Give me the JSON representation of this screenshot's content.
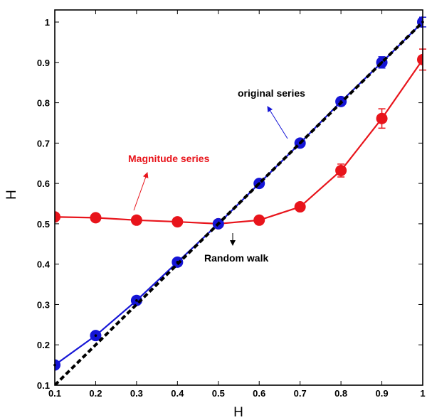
{
  "chart_data": {
    "type": "line",
    "xlabel": "H",
    "ylabel": "H",
    "xlim": [
      0.1,
      1
    ],
    "ylim": [
      0.1,
      1.03
    ],
    "x_ticks": [
      "0.1",
      "0.2",
      "0.3",
      "0.4",
      "0.5",
      "0.6",
      "0.7",
      "0.8",
      "0.9",
      "1"
    ],
    "y_ticks": [
      "0.1",
      "0.2",
      "0.3",
      "0.4",
      "0.5",
      "0.6",
      "0.7",
      "0.8",
      "0.9",
      "1"
    ],
    "grid": false,
    "x": [
      0.1,
      0.2,
      0.3,
      0.4,
      0.5,
      0.6,
      0.7,
      0.8,
      0.9,
      1.0
    ],
    "series": [
      {
        "name": "original series",
        "color": "#1515d6",
        "values": [
          0.15,
          0.223,
          0.31,
          0.405,
          0.5,
          0.6,
          0.7,
          0.803,
          0.9,
          1.0
        ],
        "errors": [
          0.0,
          0.0,
          0.0,
          0.0,
          0.0,
          0.0,
          0.0,
          0.01,
          0.014,
          0.012
        ]
      },
      {
        "name": "Magnitude series",
        "color": "#e8141b",
        "values": [
          0.517,
          0.515,
          0.509,
          0.505,
          0.5,
          0.509,
          0.542,
          0.632,
          0.761,
          0.907
        ],
        "errors": [
          0.0,
          0.0,
          0.0,
          0.0,
          0.0,
          0.0,
          0.0,
          0.016,
          0.024,
          0.026
        ]
      },
      {
        "name": "Random walk",
        "color": "#000000",
        "style": "dashed",
        "x": [
          0.1,
          1.0
        ],
        "values": [
          0.1,
          1.0
        ]
      }
    ],
    "annotations": [
      {
        "text": "original series",
        "color": "#000000",
        "arrow_color": "#1515d6"
      },
      {
        "text": "Magnitude series",
        "color": "#e8141b",
        "arrow_color": "#e8141b"
      },
      {
        "text": "Random walk",
        "color": "#000000",
        "arrow_color": "#000000"
      }
    ]
  }
}
